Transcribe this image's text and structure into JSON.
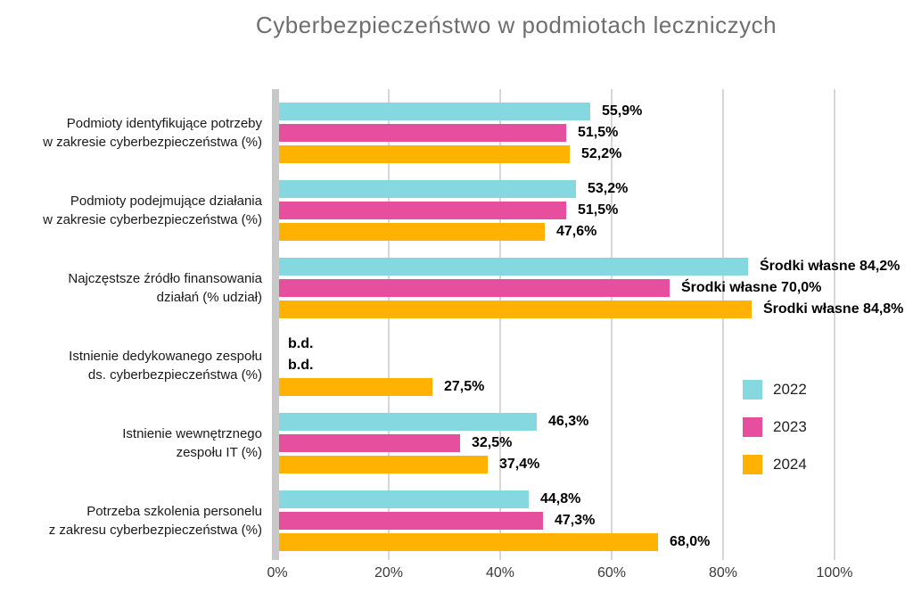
{
  "chart_data": {
    "type": "bar",
    "orientation": "horizontal",
    "title": "Cyberbezpieczeństwo w podmiotach leczniczych",
    "categories": [
      "Podmioty identyfikujące potrzeby\nw zakresie cyberbezpieczeństwa (%)",
      "Podmioty podejmujące działania\nw zakresie cyberbezpieczeństwa (%)",
      "Najczęstsze źródło finansowania\ndziałań (% udział)",
      "Istnienie dedykowanego zespołu\nds. cyberbezpieczeństwa (%)",
      "Istnienie wewnętrznego\nzespołu IT (%)",
      "Potrzeba szkolenia personelu\nz zakresu cyberbezpieczeństwa (%)"
    ],
    "series": [
      {
        "name": "2022",
        "color": "#85d8df",
        "values": [
          55.9,
          53.2,
          84.2,
          null,
          46.3,
          44.8
        ],
        "labels": [
          "55,9%",
          "53,2%",
          "Środki własne 84,2%",
          "b.d.",
          "46,3%",
          "44,8%"
        ]
      },
      {
        "name": "2023",
        "color": "#e64f9e",
        "values": [
          51.5,
          51.5,
          70.0,
          null,
          32.5,
          47.3
        ],
        "labels": [
          "51,5%",
          "51,5%",
          "Środki własne 70,0%",
          "b.d.",
          "32,5%",
          "47,3%"
        ]
      },
      {
        "name": "2024",
        "color": "#ffb201",
        "values": [
          52.2,
          47.6,
          84.8,
          27.5,
          37.4,
          68.0
        ],
        "labels": [
          "52,2%",
          "47,6%",
          "Środki własne 84,8%",
          "27,5%",
          "37,4%",
          "68,0%"
        ]
      }
    ],
    "x_ticks": [
      "0%",
      "20%",
      "40%",
      "60%",
      "80%",
      "100%"
    ],
    "xlim": [
      0,
      100
    ],
    "grid": "vertical",
    "legend_position": "right-middle",
    "no_data_text": "b.d.",
    "colors": {
      "axis_bar": "#c8c8c8",
      "gridline": "#d7d7d7",
      "title": "#6e6e6e",
      "value_label": "#000000",
      "category_label": "#1a1a1a"
    }
  }
}
